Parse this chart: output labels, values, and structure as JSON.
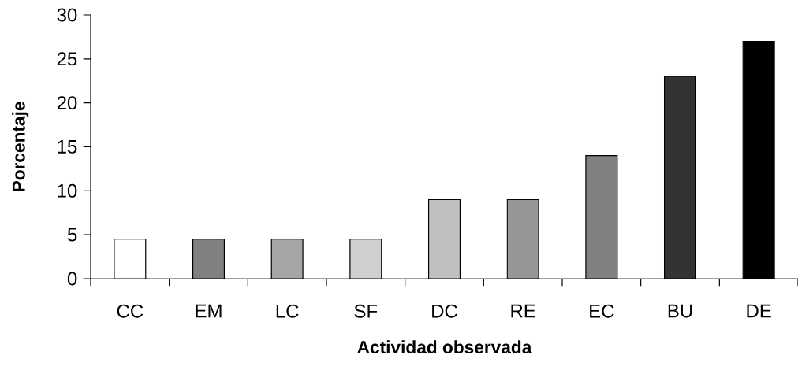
{
  "chart_data": {
    "type": "bar",
    "xlabel": "Actividad observada",
    "ylabel": "Porcentaje",
    "categories": [
      "CC",
      "EM",
      "LC",
      "SF",
      "DC",
      "RE",
      "EC",
      "BU",
      "DE"
    ],
    "values": [
      4.5,
      4.5,
      4.5,
      4.5,
      9,
      9,
      14,
      23,
      27
    ],
    "colors": [
      "#ffffff",
      "#808080",
      "#a6a6a6",
      "#d0d0d0",
      "#c0c0c0",
      "#969696",
      "#808080",
      "#333333",
      "#000000"
    ],
    "ylim": [
      0,
      30
    ],
    "yticks": [
      0,
      5,
      10,
      15,
      20,
      25,
      30
    ],
    "grid": false
  }
}
